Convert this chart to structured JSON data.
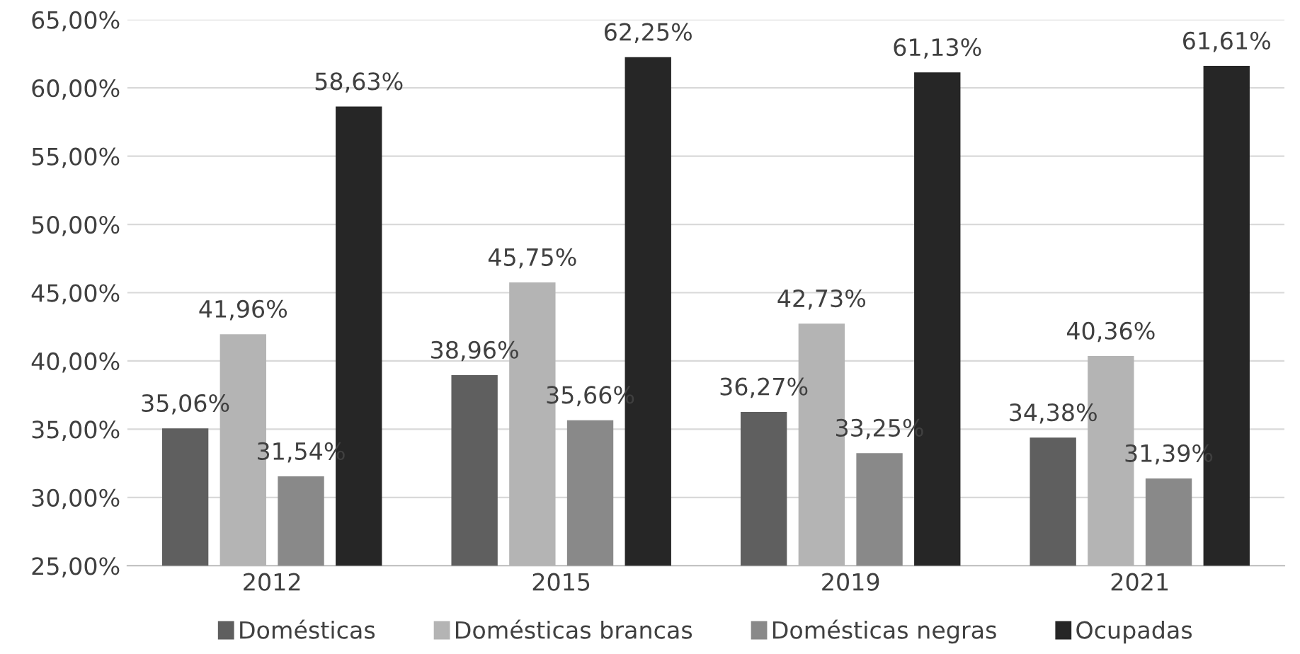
{
  "chart_data": {
    "type": "bar",
    "categories": [
      "2012",
      "2015",
      "2019",
      "2021"
    ],
    "series": [
      {
        "name": "Domésticas",
        "color": "#5f5f5f",
        "values": [
          35.06,
          38.96,
          36.27,
          34.38
        ],
        "value_labels": [
          "35,06%",
          "38,96%",
          "36,27%",
          "34,38%"
        ]
      },
      {
        "name": "Domésticas brancas",
        "color": "#b4b4b4",
        "values": [
          41.96,
          45.75,
          42.73,
          40.36
        ],
        "value_labels": [
          "41,96%",
          "45,75%",
          "42,73%",
          "40,36%"
        ]
      },
      {
        "name": "Domésticas negras",
        "color": "#898989",
        "values": [
          31.54,
          35.66,
          33.25,
          31.39
        ],
        "value_labels": [
          "31,54%",
          "35,66%",
          "33,25%",
          "31,39%"
        ]
      },
      {
        "name": "Ocupadas",
        "color": "#262626",
        "values": [
          58.63,
          62.25,
          61.13,
          61.61
        ],
        "value_labels": [
          "58,63%",
          "62,25%",
          "61,13%",
          "61,61%"
        ]
      }
    ],
    "ylim": [
      25,
      65
    ],
    "yticks": [
      {
        "value": 25,
        "label": "25,00%"
      },
      {
        "value": 30,
        "label": "30,00%"
      },
      {
        "value": 35,
        "label": "35,00%"
      },
      {
        "value": 40,
        "label": "40,00%"
      },
      {
        "value": 45,
        "label": "45,00%"
      },
      {
        "value": 50,
        "label": "50,00%"
      },
      {
        "value": 55,
        "label": "55,00%"
      },
      {
        "value": 60,
        "label": "60,00%"
      },
      {
        "value": 65,
        "label": "65,00%"
      }
    ],
    "grid": "y",
    "legend": "bottom"
  }
}
